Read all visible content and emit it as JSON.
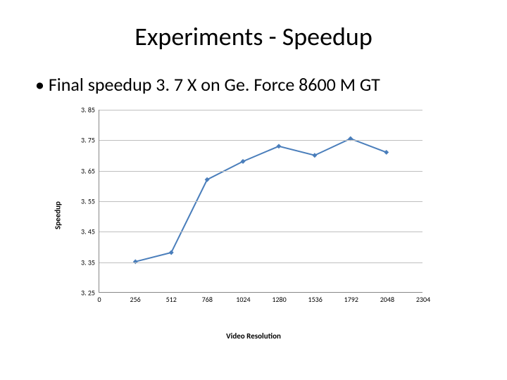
{
  "title": "Experiments - Speedup",
  "bullet": "Final speedup 3. 7 X on Ge. Force 8600 M GT",
  "chart": {
    "type": "line",
    "ylabel": "Speedup",
    "xlabel": "Video Resolution",
    "ylim": [
      3.25,
      3.85
    ],
    "xlim": [
      0,
      2304
    ],
    "yticks": [
      3.25,
      3.35,
      3.45,
      3.55,
      3.65,
      3.75,
      3.85
    ],
    "ytick_labels": [
      "3. 25",
      "3. 35",
      "3. 45",
      "3. 55",
      "3. 65",
      "3. 75",
      "3. 85"
    ],
    "xticks": [
      0,
      256,
      512,
      768,
      1024,
      1280,
      1536,
      1792,
      2048,
      2304
    ],
    "xtick_labels": [
      "0",
      "256",
      "512",
      "768",
      "1024",
      "1280",
      "1536",
      "1792",
      "2048",
      "2304"
    ],
    "grid_y": [
      3.35,
      3.45,
      3.55,
      3.65,
      3.75,
      3.85
    ],
    "grid_color": "#bfbfbf",
    "axis_color": "#888888",
    "background_color": "#ffffff",
    "series": {
      "x": [
        256,
        512,
        768,
        1024,
        1280,
        1536,
        1792,
        2048
      ],
      "y": [
        3.35,
        3.38,
        3.62,
        3.68,
        3.73,
        3.7,
        3.755,
        3.71
      ],
      "line_color": "#4a7ebb",
      "line_width": 2,
      "marker": "diamond",
      "marker_size": 7,
      "marker_color": "#4a7ebb"
    },
    "label_fontsize": 11,
    "tick_fontsize": 10
  }
}
